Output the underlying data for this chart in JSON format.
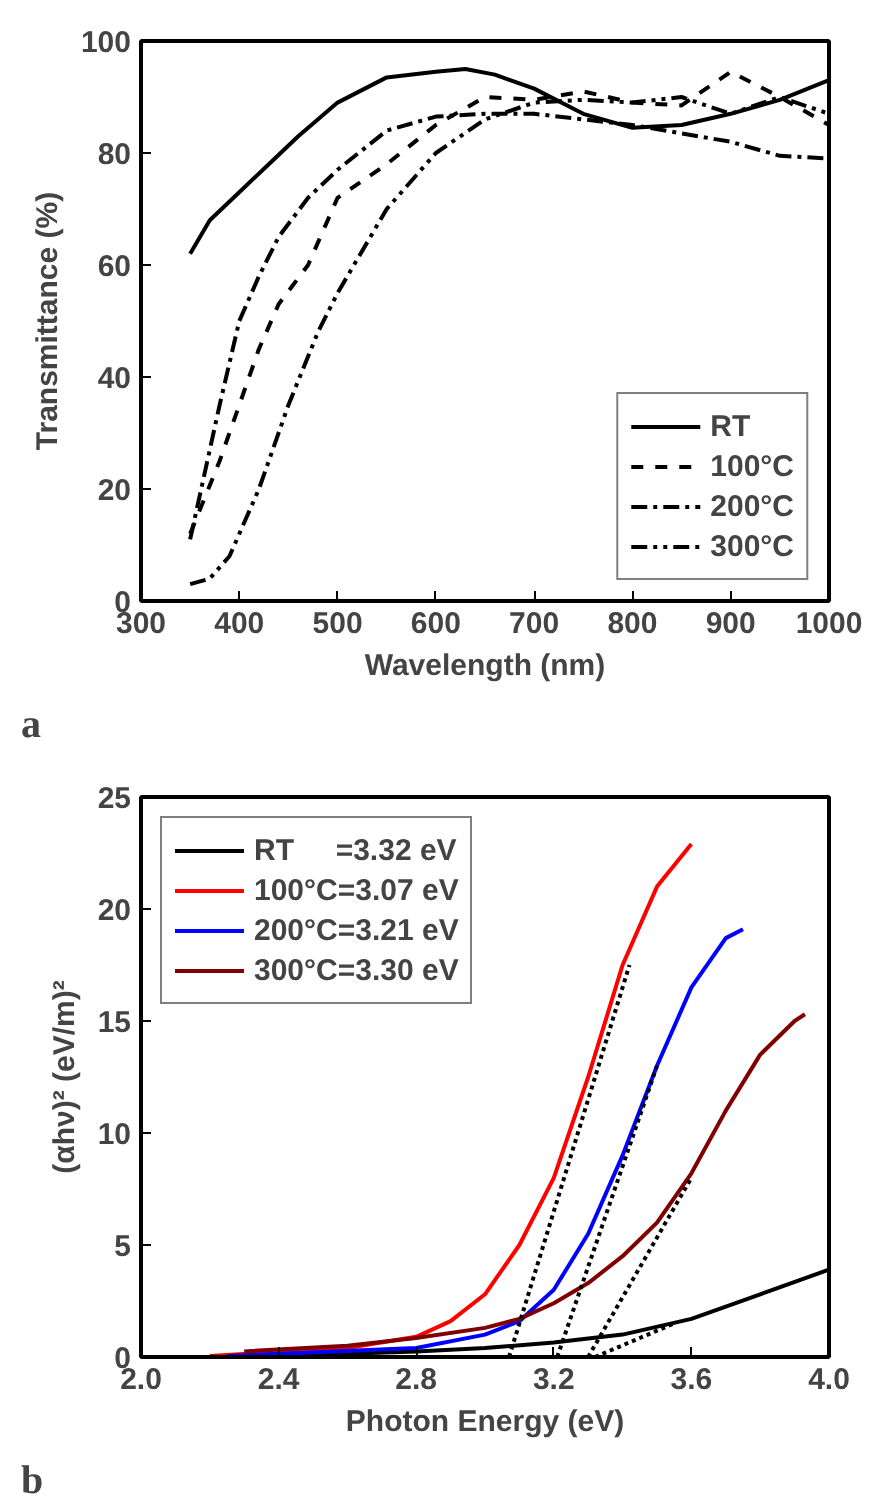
{
  "chart_data": [
    {
      "type": "line",
      "xlabel": "Wavelength (nm)",
      "ylabel": "Transmittance (%)",
      "xlim": [
        300,
        1000
      ],
      "ylim": [
        0,
        100
      ],
      "xticks": [
        300,
        400,
        500,
        600,
        700,
        800,
        900,
        1000
      ],
      "yticks": [
        0,
        20,
        40,
        60,
        80,
        100
      ],
      "grid": false,
      "legend": "bottom right",
      "annotations": [
        "a"
      ],
      "series": [
        {
          "name": "RT",
          "color": "#000000",
          "line_style": "solid",
          "x": [
            350,
            370,
            400,
            430,
            460,
            500,
            550,
            600,
            630,
            660,
            700,
            750,
            800,
            850,
            900,
            950,
            1000
          ],
          "values": [
            62,
            68,
            73,
            78,
            83,
            89,
            93.5,
            94.5,
            95,
            94,
            91.5,
            87,
            84.5,
            85,
            87,
            89.5,
            93
          ]
        },
        {
          "name": "100°C",
          "color": "#000000",
          "line_style": "dashed",
          "x": [
            350,
            380,
            400,
            420,
            440,
            470,
            500,
            550,
            600,
            650,
            700,
            750,
            800,
            850,
            900,
            950,
            1000
          ],
          "values": [
            12,
            25,
            35,
            45,
            53,
            60,
            72,
            78,
            85,
            90,
            89.5,
            91,
            89,
            88.5,
            94.5,
            90,
            85
          ]
        },
        {
          "name": "200°C",
          "color": "#000000",
          "line_style": "dashdot",
          "x": [
            350,
            380,
            400,
            420,
            440,
            470,
            500,
            550,
            600,
            650,
            700,
            750,
            800,
            850,
            900,
            950,
            1000
          ],
          "values": [
            11,
            35,
            50,
            58,
            65,
            72,
            77,
            84,
            86.5,
            87,
            87,
            86,
            85,
            83.5,
            82,
            79.5,
            79
          ]
        },
        {
          "name": "300°C",
          "color": "#000000",
          "line_style": "dashdotdot",
          "x": [
            350,
            370,
            390,
            420,
            450,
            480,
            500,
            550,
            600,
            650,
            700,
            750,
            800,
            850,
            900,
            950,
            1000
          ],
          "values": [
            3,
            4,
            8,
            20,
            35,
            48,
            55,
            70,
            80,
            86,
            89,
            89.5,
            89,
            90,
            87,
            90,
            87
          ]
        }
      ]
    },
    {
      "type": "line",
      "xlabel": "Photon Energy (eV)",
      "ylabel": "(αhν)² (eV/m)²",
      "xlim": [
        2.0,
        4.0
      ],
      "ylim": [
        0,
        25
      ],
      "xticks": [
        {
          "value": 2.0,
          "label": "2.0"
        },
        2.4,
        2.8,
        3.2,
        3.6,
        {
          "value": 4.0,
          "label": "4.0"
        }
      ],
      "yticks": [
        0,
        5,
        10,
        15,
        20,
        25
      ],
      "grid": false,
      "legend": "top left",
      "annotations": [
        "b"
      ],
      "series": [
        {
          "name": "RT     =3.32 eV",
          "color": "#000000",
          "line_style": "solid",
          "x": [
            2.25,
            2.6,
            2.8,
            3.0,
            3.2,
            3.4,
            3.6,
            3.8,
            4.0
          ],
          "values": [
            0.05,
            0.15,
            0.25,
            0.4,
            0.65,
            1.0,
            1.7,
            2.8,
            3.9
          ]
        },
        {
          "name": "100°C=3.07 eV",
          "color": "#ff0000",
          "line_style": "solid",
          "x": [
            2.2,
            2.6,
            2.8,
            2.9,
            3.0,
            3.1,
            3.2,
            3.3,
            3.4,
            3.5,
            3.6
          ],
          "values": [
            0.05,
            0.4,
            0.9,
            1.6,
            2.8,
            5,
            8,
            12.5,
            17.5,
            21,
            22.9
          ]
        },
        {
          "name": "200°C=3.21 eV",
          "color": "#0000ff",
          "line_style": "solid",
          "x": [
            2.25,
            2.8,
            3.0,
            3.1,
            3.2,
            3.3,
            3.4,
            3.5,
            3.6,
            3.7,
            3.75
          ],
          "values": [
            0.05,
            0.4,
            1.0,
            1.6,
            3.0,
            5.5,
            9,
            13,
            16.5,
            18.7,
            19.1
          ]
        },
        {
          "name": "300°C=3.30 eV",
          "color": "#800000",
          "line_style": "solid",
          "x": [
            2.3,
            2.6,
            2.8,
            3.0,
            3.1,
            3.2,
            3.3,
            3.4,
            3.5,
            3.6,
            3.7,
            3.8,
            3.9,
            3.93
          ],
          "values": [
            0.25,
            0.5,
            0.85,
            1.3,
            1.7,
            2.4,
            3.3,
            4.5,
            6.0,
            8.2,
            11,
            13.5,
            15.0,
            15.3
          ]
        },
        {
          "color": "#000000",
          "line_style": "dotted",
          "x": [
            3.07,
            3.42
          ],
          "values": [
            0,
            17.5
          ]
        },
        {
          "color": "#000000",
          "line_style": "dotted",
          "x": [
            3.21,
            3.5
          ],
          "values": [
            0,
            13
          ]
        },
        {
          "color": "#000000",
          "line_style": "dotted",
          "x": [
            3.3,
            3.6
          ],
          "values": [
            0,
            8
          ]
        },
        {
          "color": "#000000",
          "line_style": "dotted",
          "x": [
            3.32,
            3.55
          ],
          "values": [
            0,
            1.5
          ]
        }
      ]
    }
  ]
}
